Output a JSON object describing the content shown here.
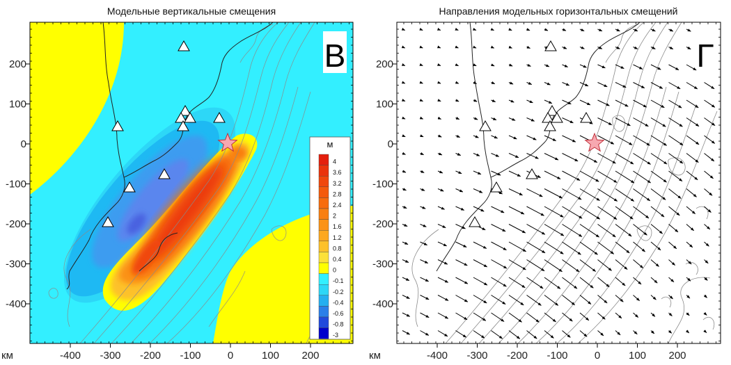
{
  "left_panel": {
    "title": "Модельные вертикальные смещения",
    "panel_letter": "В",
    "legend": {
      "unit": "м",
      "levels": [
        {
          "label": "4",
          "color": "#e41f0d"
        },
        {
          "label": "3.6",
          "color": "#ea330c"
        },
        {
          "label": "3.2",
          "color": "#f0470c"
        },
        {
          "label": "2.8",
          "color": "#f45a0b"
        },
        {
          "label": "2.4",
          "color": "#f76c0c"
        },
        {
          "label": "2",
          "color": "#f97f10"
        },
        {
          "label": "1.6",
          "color": "#fb9316"
        },
        {
          "label": "1.2",
          "color": "#fda81f"
        },
        {
          "label": "0.8",
          "color": "#fdc12b"
        },
        {
          "label": "0.4",
          "color": "#fce13a"
        },
        {
          "label": "0",
          "color": "#ffff00"
        },
        {
          "label": "-0.1",
          "color": "#33efff"
        },
        {
          "label": "-0.2",
          "color": "#2dd7f7"
        },
        {
          "label": "-0.4",
          "color": "#25aff0"
        },
        {
          "label": "-0.6",
          "color": "#2b7fe8"
        },
        {
          "label": "-0.8",
          "color": "#2149dc"
        },
        {
          "label": "-3",
          "color": "#0000cc"
        }
      ]
    }
  },
  "right_panel": {
    "title": "Направления модельных горизонтальных смещений",
    "panel_letter": "Г"
  },
  "axes": {
    "unit_label": "км",
    "x_ticks": [
      "-400",
      "-300",
      "-200",
      "-100",
      "0",
      "100",
      "200"
    ],
    "y_ticks": [
      "200",
      "100",
      "0",
      "-100",
      "-200",
      "-300",
      "-400"
    ]
  },
  "colors": {
    "uplift_yellow": "#ffff00",
    "subsidence_cyan": "#33efff",
    "epicenter_star": "#f7a8b0"
  },
  "icons": {
    "station": "triangle-icon",
    "epicenter": "star-icon"
  }
}
